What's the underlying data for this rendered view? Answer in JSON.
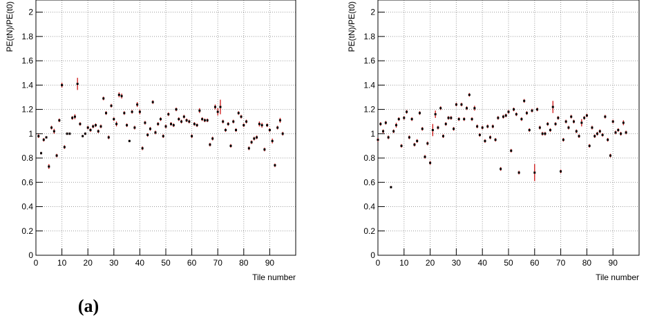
{
  "chart_data": [
    {
      "type": "scatter",
      "x_label": "Tile number",
      "y_label": "PE(tN)/PE(t0)",
      "xlim": [
        0,
        100
      ],
      "ylim": [
        0,
        2.1
      ],
      "xticks": [
        0,
        10,
        20,
        30,
        40,
        50,
        60,
        70,
        80,
        90
      ],
      "yticks": [
        0,
        0.2,
        0.4,
        0.6,
        0.8,
        1,
        1.2,
        1.4,
        1.6,
        1.8,
        2
      ],
      "grid": true,
      "marker_color": "#000000",
      "error_color": "#cc0000",
      "x": [
        1,
        2,
        3,
        4,
        5,
        6,
        7,
        8,
        9,
        10,
        11,
        12,
        13,
        14,
        15,
        16,
        17,
        18,
        19,
        20,
        21,
        22,
        23,
        24,
        25,
        26,
        27,
        28,
        29,
        30,
        31,
        32,
        33,
        34,
        35,
        36,
        37,
        38,
        39,
        40,
        41,
        42,
        43,
        44,
        45,
        46,
        47,
        48,
        49,
        50,
        51,
        52,
        53,
        54,
        55,
        56,
        57,
        58,
        59,
        60,
        61,
        62,
        63,
        64,
        65,
        66,
        67,
        68,
        69,
        70,
        71,
        72,
        73,
        74,
        75,
        76,
        77,
        78,
        79,
        80,
        81,
        82,
        83,
        84,
        85,
        86,
        87,
        88,
        89,
        90,
        91,
        92,
        93,
        94,
        95
      ],
      "values": [
        0.98,
        0.84,
        0.95,
        0.97,
        0.73,
        1.05,
        1.02,
        0.82,
        1.11,
        1.4,
        0.89,
        1.0,
        1.0,
        1.13,
        1.14,
        1.41,
        1.08,
        0.98,
        1.0,
        1.05,
        1.03,
        1.06,
        1.07,
        1.02,
        1.06,
        1.29,
        1.17,
        0.97,
        1.23,
        1.12,
        1.08,
        1.32,
        1.31,
        1.17,
        1.07,
        0.94,
        1.18,
        1.05,
        1.24,
        1.18,
        0.88,
        1.09,
        0.99,
        1.04,
        1.26,
        1.01,
        1.08,
        1.12,
        0.98,
        1.06,
        1.16,
        1.08,
        1.07,
        1.2,
        1.12,
        1.1,
        1.14,
        1.11,
        1.1,
        0.98,
        1.08,
        1.07,
        1.19,
        1.12,
        1.11,
        1.11,
        0.91,
        0.96,
        1.22,
        1.18,
        1.22,
        1.1,
        1.03,
        1.08,
        0.9,
        1.1,
        1.03,
        1.17,
        1.14,
        1.07,
        1.1,
        0.88,
        0.93,
        0.96,
        0.97,
        1.08,
        1.07,
        0.87,
        1.07,
        1.03,
        0.94,
        0.74,
        1.05,
        1.11,
        1.0
      ],
      "errors": [
        0.015,
        0.01,
        0.015,
        0.01,
        0.02,
        0.015,
        0.02,
        0.015,
        0.015,
        0.02,
        0.015,
        0.01,
        0.01,
        0.015,
        0.02,
        0.05,
        0.015,
        0.01,
        0.01,
        0.015,
        0.015,
        0.015,
        0.015,
        0.015,
        0.015,
        0.015,
        0.015,
        0.015,
        0.015,
        0.015,
        0.02,
        0.02,
        0.02,
        0.015,
        0.015,
        0.01,
        0.015,
        0.015,
        0.02,
        0.02,
        0.015,
        0.015,
        0.015,
        0.015,
        0.015,
        0.015,
        0.015,
        0.015,
        0.015,
        0.015,
        0.015,
        0.015,
        0.015,
        0.015,
        0.015,
        0.015,
        0.015,
        0.015,
        0.015,
        0.015,
        0.015,
        0.015,
        0.02,
        0.015,
        0.015,
        0.015,
        0.015,
        0.015,
        0.02,
        0.03,
        0.06,
        0.015,
        0.015,
        0.015,
        0.015,
        0.015,
        0.015,
        0.015,
        0.015,
        0.015,
        0.015,
        0.015,
        0.015,
        0.015,
        0.015,
        0.02,
        0.02,
        0.015,
        0.015,
        0.015,
        0.02,
        0.015,
        0.015,
        0.02,
        0.015
      ]
    },
    {
      "type": "scatter",
      "x_label": "Tile number",
      "y_label": "PE(tN)/PE(t0)",
      "xlim": [
        0,
        100
      ],
      "ylim": [
        0,
        2.1
      ],
      "xticks": [
        0,
        10,
        20,
        30,
        40,
        50,
        60,
        70,
        80,
        90
      ],
      "yticks": [
        0,
        0.2,
        0.4,
        0.6,
        0.8,
        1,
        1.2,
        1.4,
        1.6,
        1.8,
        2
      ],
      "grid": true,
      "marker_color": "#000000",
      "error_color": "#cc0000",
      "x": [
        0,
        1,
        2,
        3,
        4,
        5,
        6,
        7,
        8,
        9,
        10,
        11,
        12,
        13,
        14,
        15,
        16,
        17,
        18,
        19,
        20,
        21,
        22,
        23,
        24,
        25,
        26,
        27,
        28,
        29,
        30,
        31,
        32,
        33,
        34,
        35,
        36,
        37,
        38,
        39,
        40,
        41,
        42,
        43,
        44,
        45,
        46,
        47,
        48,
        49,
        50,
        51,
        52,
        53,
        54,
        55,
        56,
        57,
        58,
        59,
        60,
        61,
        62,
        63,
        64,
        65,
        66,
        67,
        68,
        69,
        70,
        71,
        72,
        73,
        74,
        75,
        76,
        77,
        78,
        79,
        80,
        81,
        82,
        83,
        84,
        85,
        86,
        87,
        88,
        89,
        90,
        91,
        92,
        93,
        94,
        95
      ],
      "values": [
        0.95,
        1.08,
        1.02,
        1.09,
        0.97,
        0.56,
        1.02,
        1.07,
        1.12,
        0.9,
        1.13,
        1.18,
        0.97,
        1.12,
        0.91,
        0.94,
        1.17,
        1.04,
        0.81,
        0.92,
        0.76,
        1.03,
        1.16,
        1.05,
        1.21,
        0.98,
        1.08,
        1.13,
        1.13,
        1.04,
        1.24,
        1.12,
        1.24,
        1.12,
        1.21,
        1.32,
        1.12,
        1.21,
        1.06,
        0.99,
        1.05,
        0.94,
        1.06,
        0.97,
        1.06,
        0.95,
        1.13,
        0.71,
        1.14,
        1.15,
        1.18,
        0.86,
        1.2,
        1.16,
        0.68,
        1.12,
        1.27,
        1.17,
        1.03,
        1.19,
        0.68,
        1.2,
        1.05,
        1.0,
        1.0,
        1.08,
        1.03,
        1.22,
        1.08,
        1.13,
        0.69,
        0.95,
        1.1,
        1.05,
        1.14,
        1.1,
        1.02,
        0.98,
        1.09,
        1.13,
        1.15,
        0.9,
        1.05,
        0.98,
        1.0,
        1.02,
        0.99,
        1.14,
        0.95,
        0.82,
        1.1,
        1.01,
        1.03,
        1.0,
        1.09,
        1.01
      ],
      "errors": [
        0.015,
        0.015,
        0.015,
        0.015,
        0.015,
        0.01,
        0.015,
        0.02,
        0.015,
        0.015,
        0.015,
        0.015,
        0.015,
        0.015,
        0.015,
        0.015,
        0.015,
        0.015,
        0.015,
        0.015,
        0.015,
        0.05,
        0.03,
        0.015,
        0.015,
        0.015,
        0.015,
        0.015,
        0.015,
        0.015,
        0.015,
        0.015,
        0.015,
        0.015,
        0.015,
        0.015,
        0.015,
        0.02,
        0.015,
        0.015,
        0.015,
        0.015,
        0.015,
        0.015,
        0.015,
        0.015,
        0.015,
        0.015,
        0.015,
        0.015,
        0.015,
        0.015,
        0.015,
        0.015,
        0.015,
        0.015,
        0.015,
        0.015,
        0.015,
        0.015,
        0.07,
        0.015,
        0.015,
        0.015,
        0.015,
        0.015,
        0.015,
        0.05,
        0.015,
        0.015,
        0.015,
        0.015,
        0.015,
        0.015,
        0.015,
        0.015,
        0.015,
        0.015,
        0.03,
        0.015,
        0.015,
        0.015,
        0.015,
        0.015,
        0.015,
        0.015,
        0.015,
        0.015,
        0.015,
        0.015,
        0.015,
        0.015,
        0.015,
        0.015,
        0.02,
        0.015
      ]
    }
  ],
  "panel_label": "(a)"
}
